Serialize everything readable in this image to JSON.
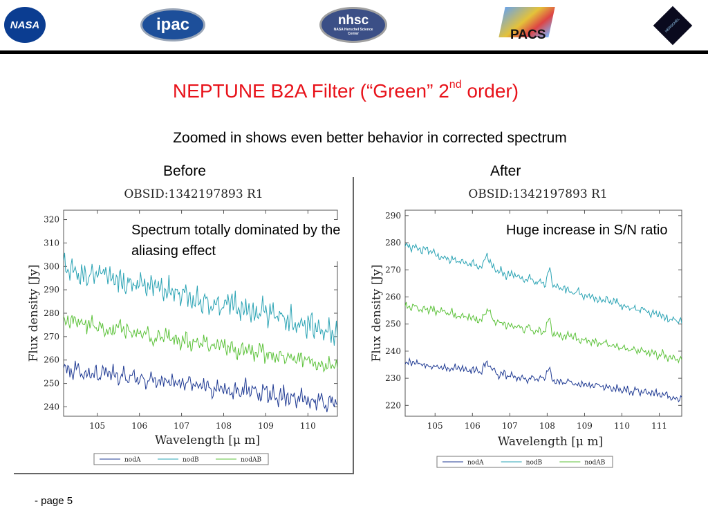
{
  "logos": {
    "nasa": "NASA",
    "ipac": "ipac",
    "nhsc": "nhsc",
    "nhsc_sub": "NASA Herschel Science Center",
    "pacs": "PACS",
    "herschel": "HERSCHEL"
  },
  "title_main": "NEPTUNE B2A Filter (“Green” 2",
  "title_sup": "nd",
  "title_end": " order)",
  "subtitle": "Zoomed in shows even better behavior in corrected spectrum",
  "before_label": "Before",
  "after_label": "After",
  "note_before": "Spectrum totally dominated by the aliasing effect",
  "note_after": "Huge increase in S/N ratio",
  "footer": "- page 5",
  "colors": {
    "nodA": "#1f3a93",
    "nodB": "#2aa3b4",
    "nodAB": "#5cc23a",
    "title": "#e8121a"
  },
  "chart_data": [
    {
      "type": "line",
      "title": "OBSID:1342197893 R1",
      "xlabel": "Wavelength [μ m]",
      "ylabel": "Flux density [Jy]",
      "xlim": [
        104.2,
        110.7
      ],
      "ylim": [
        236,
        324
      ],
      "xticks": [
        105,
        106,
        107,
        108,
        109,
        110
      ],
      "yticks": [
        240,
        250,
        260,
        270,
        280,
        290,
        300,
        310,
        320
      ],
      "legend": "bottom",
      "series": [
        {
          "name": "nodA",
          "color": "#1f3a93",
          "start": 256,
          "end": 242,
          "noise": 3.2
        },
        {
          "name": "nodB",
          "color": "#2aa3b4",
          "start": 300,
          "end": 272,
          "noise": 4.5
        },
        {
          "name": "nodAB",
          "color": "#5cc23a",
          "start": 277,
          "end": 257,
          "noise": 3.0
        }
      ]
    },
    {
      "type": "line",
      "title": "OBSID:1342197893 R1",
      "xlabel": "Wavelength [μ m]",
      "ylabel": "Flux density [Jy]",
      "xlim": [
        104.2,
        111.6
      ],
      "ylim": [
        216,
        292
      ],
      "xticks": [
        105,
        106,
        107,
        108,
        109,
        110,
        111
      ],
      "yticks": [
        220,
        230,
        240,
        250,
        260,
        270,
        280,
        290
      ],
      "legend": "bottom",
      "series": [
        {
          "name": "nodA",
          "color": "#1f3a93",
          "start": 236,
          "end": 223,
          "noise": 1.2
        },
        {
          "name": "nodB",
          "color": "#2aa3b4",
          "start": 279,
          "end": 251,
          "noise": 1.4
        },
        {
          "name": "nodAB",
          "color": "#5cc23a",
          "start": 257,
          "end": 237,
          "noise": 1.3
        }
      ]
    }
  ]
}
